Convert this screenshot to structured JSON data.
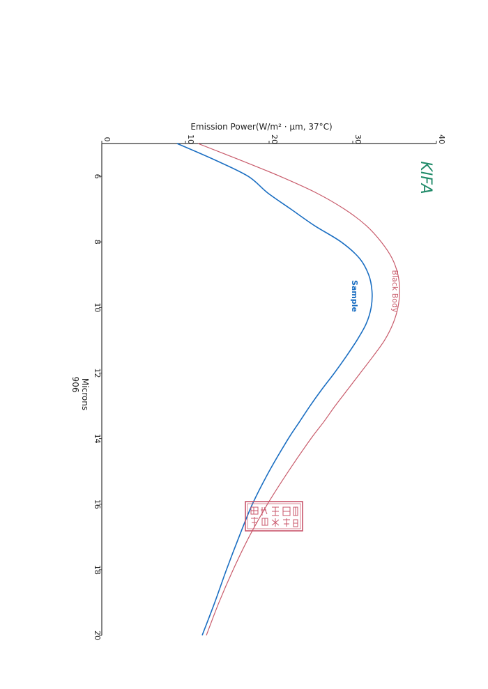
{
  "page": {
    "logo_text": "KIFA",
    "stamp_text": "韓國遠赤外線應用評價硏究院"
  },
  "colors": {
    "black_body": "#c85a6a",
    "sample": "#1a6ec2",
    "logo": "#1f8a68",
    "stamp": "#c8546a",
    "axis": "#333333"
  },
  "chart_data": {
    "type": "line",
    "orientation": "rotated-90-clockwise",
    "xlabel": "Microns",
    "xlabel_sub": "906",
    "ylabel": "Emission Power(W/m² · μm, 37°C)",
    "xlim": [
      5,
      20
    ],
    "ylim": [
      0,
      40
    ],
    "x_ticks": [
      6,
      8,
      10,
      12,
      14,
      16,
      18,
      20
    ],
    "y_ticks": [
      0,
      10,
      20,
      30,
      40
    ],
    "grid": false,
    "series": [
      {
        "name": "Black Body",
        "x": [
          5.0,
          5.5,
          6.0,
          6.5,
          7.0,
          7.5,
          8.0,
          8.5,
          9.0,
          9.5,
          10.0,
          10.5,
          11.0,
          11.5,
          12.0,
          12.5,
          13.0,
          13.5,
          14.0,
          15.0,
          16.0,
          17.0,
          18.0,
          19.0,
          20.0
        ],
        "y": [
          11.5,
          16.5,
          21.3,
          25.6,
          29.0,
          31.6,
          33.4,
          34.7,
          35.4,
          35.6,
          35.4,
          34.8,
          33.8,
          32.4,
          30.9,
          29.4,
          27.9,
          26.5,
          25.0,
          22.3,
          19.8,
          17.6,
          15.7,
          14.0,
          12.5
        ]
      },
      {
        "name": "Sample",
        "x": [
          5.0,
          5.5,
          6.0,
          6.5,
          7.0,
          7.5,
          8.0,
          8.5,
          9.0,
          9.5,
          10.0,
          10.5,
          11.0,
          11.5,
          12.0,
          12.5,
          13.0,
          13.5,
          14.0,
          15.0,
          16.0,
          17.0,
          18.0,
          19.0,
          20.0
        ],
        "y": [
          9.0,
          13.5,
          17.5,
          19.8,
          22.6,
          25.4,
          28.6,
          30.8,
          31.9,
          32.3,
          32.2,
          31.6,
          30.5,
          29.2,
          27.8,
          26.3,
          24.9,
          23.6,
          22.3,
          20.0,
          18.0,
          16.4,
          14.9,
          13.5,
          12.0
        ]
      }
    ]
  }
}
